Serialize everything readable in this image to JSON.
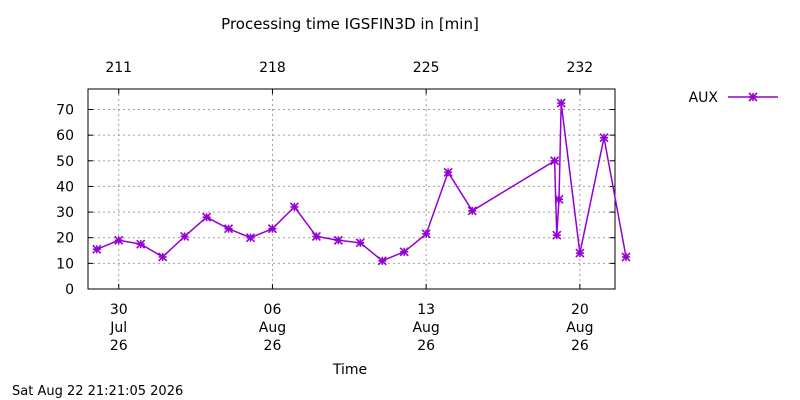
{
  "chart_data": {
    "type": "line",
    "title": "Processing time IGSFIN3D in [min]",
    "xlabel": "Time",
    "ylabel": "",
    "ylim": [
      0,
      78
    ],
    "xlim": [
      28.6,
      52.6
    ],
    "grid": true,
    "legend_position": "top-right, outside plot",
    "colors": {
      "series": "#9400d3",
      "grid": "#a0a0a0",
      "axis": "#000000"
    },
    "x_ticks": [
      {
        "x": 30,
        "lines": [
          "30",
          "Jul",
          "26"
        ]
      },
      {
        "x": 37,
        "lines": [
          "06",
          "Aug",
          "26"
        ]
      },
      {
        "x": 44,
        "lines": [
          "13",
          "Aug",
          "26"
        ]
      },
      {
        "x": 51,
        "lines": [
          "20",
          "Aug",
          "26"
        ]
      }
    ],
    "x2_ticks": [
      {
        "x": 30,
        "label": "211"
      },
      {
        "x": 37,
        "label": "218"
      },
      {
        "x": 44,
        "label": "225"
      },
      {
        "x": 51,
        "label": "232"
      }
    ],
    "y_ticks": [
      0,
      10,
      20,
      30,
      40,
      50,
      60,
      70
    ],
    "series": [
      {
        "name": "AUX",
        "marker": "asterisk",
        "points": [
          {
            "x": 29.0,
            "y": 15.5
          },
          {
            "x": 30.0,
            "y": 19
          },
          {
            "x": 31.0,
            "y": 17.5
          },
          {
            "x": 32.0,
            "y": 12.5
          },
          {
            "x": 33.0,
            "y": 20.5
          },
          {
            "x": 34.0,
            "y": 28
          },
          {
            "x": 35.0,
            "y": 23.5
          },
          {
            "x": 36.0,
            "y": 20
          },
          {
            "x": 37.0,
            "y": 23.5
          },
          {
            "x": 38.0,
            "y": 32
          },
          {
            "x": 39.0,
            "y": 20.5
          },
          {
            "x": 40.0,
            "y": 19
          },
          {
            "x": 41.0,
            "y": 18
          },
          {
            "x": 42.0,
            "y": 11
          },
          {
            "x": 43.0,
            "y": 14.5
          },
          {
            "x": 44.0,
            "y": 21.5
          },
          {
            "x": 45.0,
            "y": 45.5
          },
          {
            "x": 46.1,
            "y": 30.5
          },
          {
            "x": 49.85,
            "y": 50
          },
          {
            "x": 49.95,
            "y": 21
          },
          {
            "x": 50.05,
            "y": 35
          },
          {
            "x": 50.15,
            "y": 72.5
          },
          {
            "x": 51.0,
            "y": 14
          },
          {
            "x": 52.1,
            "y": 59
          },
          {
            "x": 53.1,
            "y": 12.5
          }
        ]
      }
    ]
  },
  "footer": {
    "timestamp": "Sat Aug 22 21:21:05 2026"
  }
}
